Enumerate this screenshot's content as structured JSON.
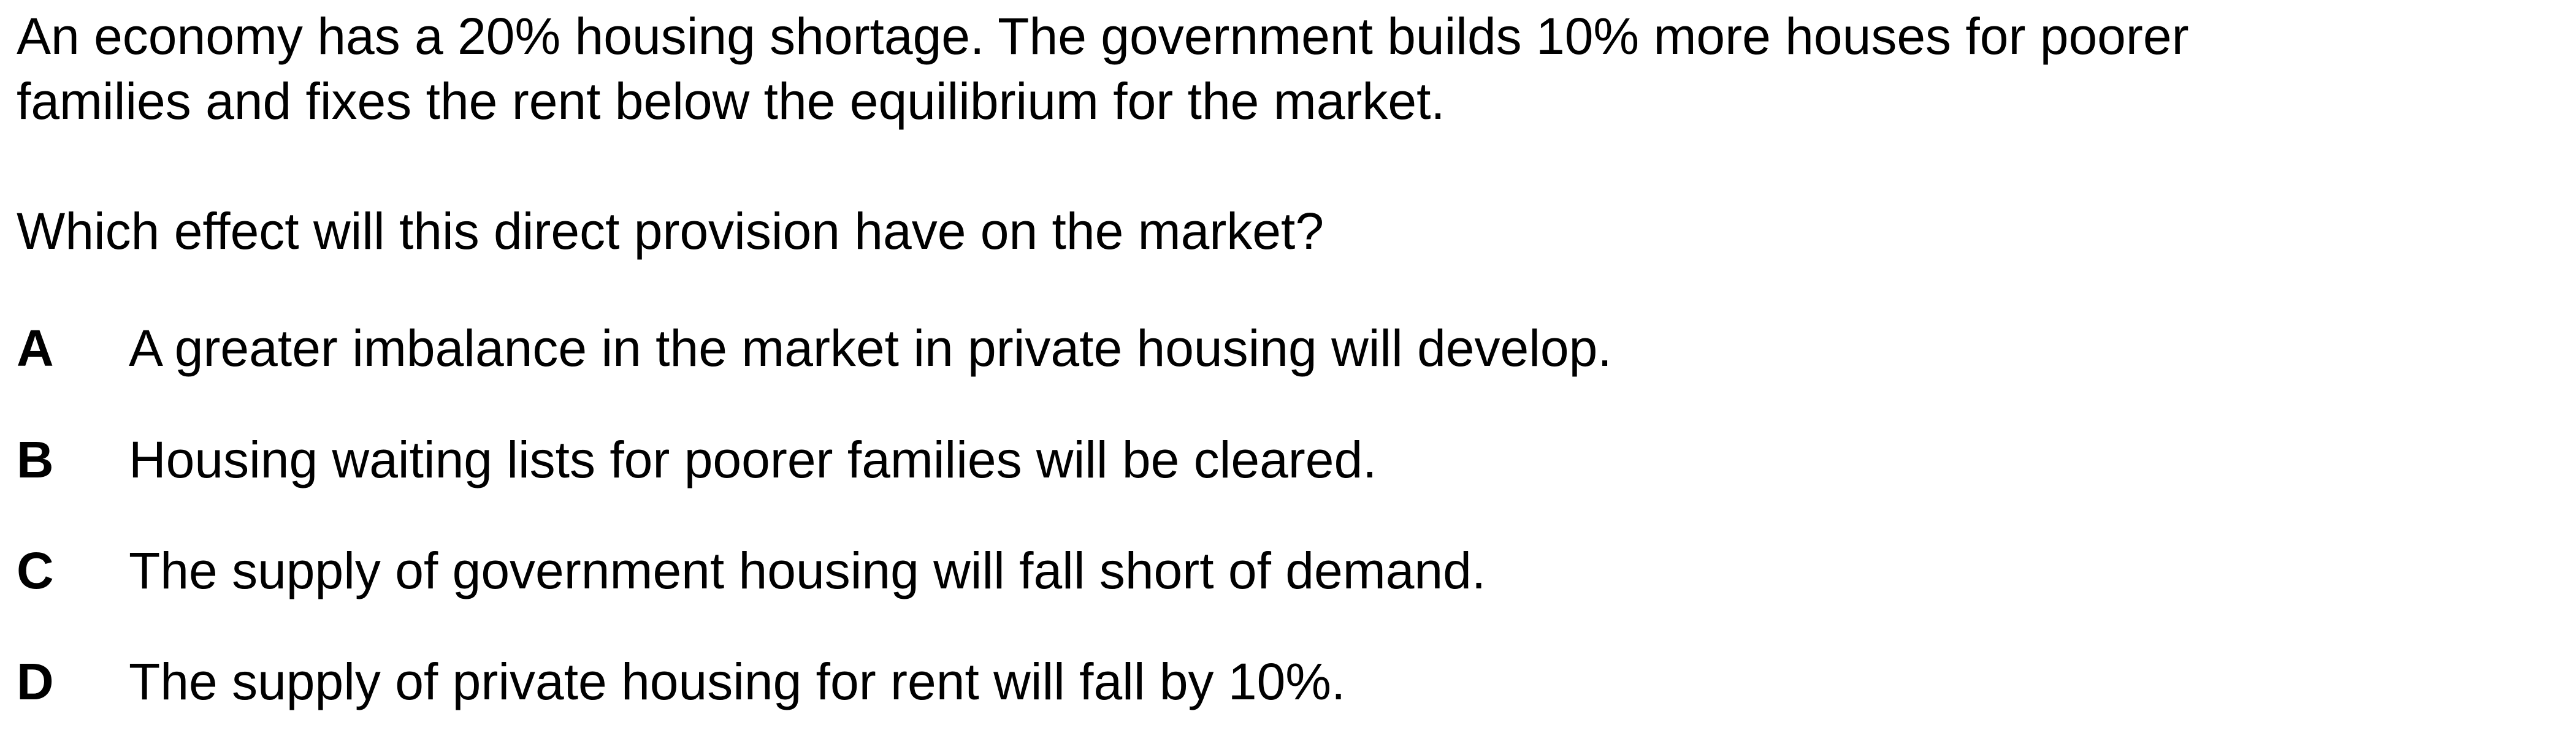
{
  "question": {
    "stem_lines": [
      "An economy has a 20% housing shortage. The government builds 10% more houses for poorer",
      "families and fixes the rent below the equilibrium for the market."
    ],
    "prompt": "Which effect will this direct provision have on the market?",
    "options": [
      {
        "letter": "A",
        "text": "A greater imbalance in the market in private housing will develop."
      },
      {
        "letter": "B",
        "text": "Housing waiting lists for poorer families will be cleared."
      },
      {
        "letter": "C",
        "text": "The supply of government housing will fall short of demand."
      },
      {
        "letter": "D",
        "text": "The supply of private housing for rent will fall by 10%."
      }
    ]
  }
}
